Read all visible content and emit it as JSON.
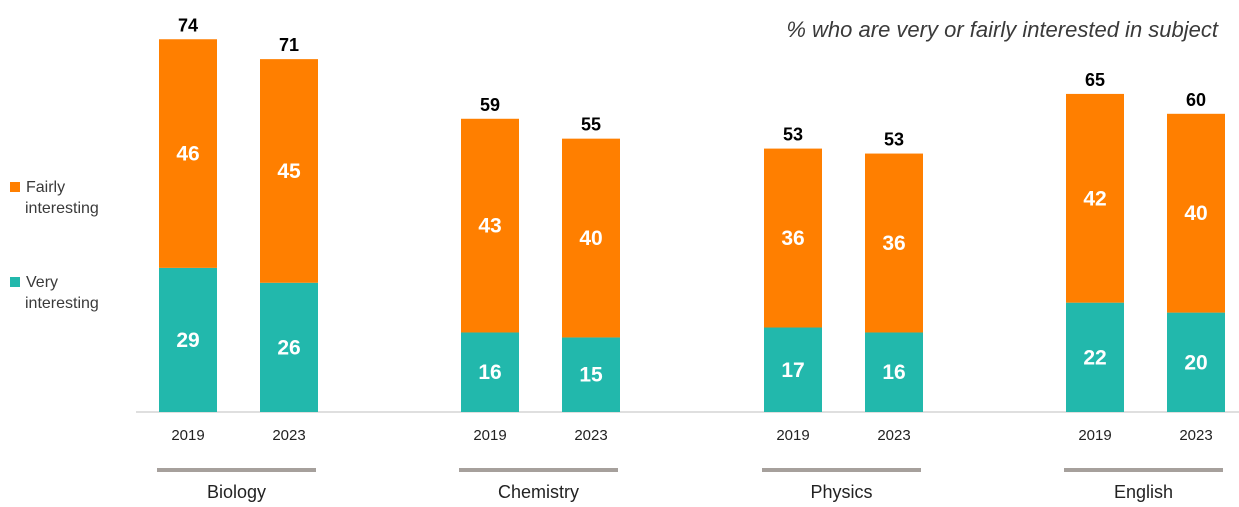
{
  "chart_data": {
    "type": "bar",
    "stacked": true,
    "subtitle": "% who are very or fairly interested in subject",
    "groups": [
      {
        "name": "Biology",
        "categories": [
          "2019",
          "2023"
        ],
        "very": [
          29,
          26
        ],
        "fairly": [
          46,
          45
        ],
        "totals": [
          74,
          71
        ]
      },
      {
        "name": "Chemistry",
        "categories": [
          "2019",
          "2023"
        ],
        "very": [
          16,
          15
        ],
        "fairly": [
          43,
          40
        ],
        "totals": [
          59,
          55
        ]
      },
      {
        "name": "Physics",
        "categories": [
          "2019",
          "2023"
        ],
        "very": [
          17,
          16
        ],
        "fairly": [
          36,
          36
        ],
        "totals": [
          53,
          53
        ]
      },
      {
        "name": "English",
        "categories": [
          "2019",
          "2023"
        ],
        "very": [
          22,
          20
        ],
        "fairly": [
          42,
          40
        ],
        "totals": [
          65,
          60
        ]
      }
    ],
    "series": [
      {
        "name": "Very interesting",
        "color": "#22b8ac"
      },
      {
        "name": "Fairly interesting",
        "color": "#ff7f00"
      }
    ],
    "legend": {
      "position": "left",
      "entries": [
        {
          "lines": [
            "Fairly",
            "interesting"
          ],
          "color": "#ff7f00"
        },
        {
          "lines": [
            "Very",
            "interesting"
          ],
          "color": "#22b8ac"
        }
      ]
    },
    "ylim": [
      0,
      80
    ],
    "grid": false,
    "colors": {
      "axis": "#bfbfbf",
      "group_underline": "#a6a09c"
    }
  }
}
